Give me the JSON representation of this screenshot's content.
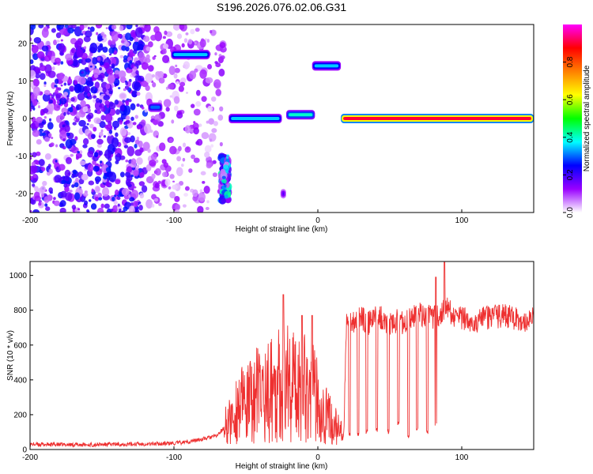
{
  "figure": {
    "title": "S196.2026.076.02.06.G31"
  },
  "chart_data": [
    {
      "type": "heatmap",
      "xlabel": "Height of straight line (km)",
      "ylabel": "Frequency (Hz)",
      "xlim": [
        -200,
        150
      ],
      "ylim": [
        -25,
        25
      ],
      "xticks": [
        "-200",
        "-100",
        "0",
        "100"
      ],
      "yticks": [
        "-20",
        "-10",
        "0",
        "10",
        "20"
      ],
      "colorbar": {
        "label": "Normalized spectral amplitude",
        "range": [
          0,
          1
        ],
        "ticks": [
          "0.0",
          "0.2",
          "0.4",
          "0.6",
          "0.8"
        ],
        "colormap": "rainbow",
        "colors": [
          "#ffffff",
          "#9900ff",
          "#0000ff",
          "#00ffff",
          "#00ff00",
          "#ffff00",
          "#ff8000",
          "#ff0000",
          "#ff00ff"
        ]
      },
      "features": [
        {
          "x_range": [
            -200,
            -120
          ],
          "freq_range": [
            -25,
            25
          ],
          "amplitude": 0.15,
          "pattern": "scattered noise"
        },
        {
          "x_range": [
            -120,
            -65
          ],
          "freq_range": [
            -25,
            25
          ],
          "amplitude": 0.08,
          "pattern": "sparse noise"
        },
        {
          "x_range": [
            -102,
            -75
          ],
          "freq": 17,
          "amplitude": 0.35
        },
        {
          "x_range": [
            -118,
            -108
          ],
          "freq": 3,
          "amplitude": 0.3
        },
        {
          "x_range": [
            -67,
            -62
          ],
          "freq_range": [
            -22,
            -10
          ],
          "amplitude": 0.25
        },
        {
          "x_range": [
            -62,
            -25
          ],
          "freq": 0,
          "amplitude": 0.35
        },
        {
          "x_range": [
            -22,
            -2
          ],
          "freq": 1,
          "amplitude": 0.4
        },
        {
          "x_range": [
            -4,
            16
          ],
          "freq": 14,
          "amplitude": 0.35
        },
        {
          "x_range": [
            -26,
            -22
          ],
          "freq": -20,
          "amplitude": 0.2
        },
        {
          "x_range": [
            16,
            150
          ],
          "freq": 0,
          "amplitude": 0.9
        }
      ]
    },
    {
      "type": "line",
      "xlabel": "Height of straight line (km)",
      "ylabel": "SNR (10 * v/v)",
      "xlim": [
        -200,
        150
      ],
      "ylim": [
        0,
        1080
      ],
      "xticks": [
        "-200",
        "-100",
        "0",
        "100"
      ],
      "yticks": [
        "0",
        "200",
        "400",
        "600",
        "800",
        "1000"
      ],
      "series": [
        {
          "color": "#ee3030",
          "x": [
            -200,
            -180,
            -160,
            -140,
            -120,
            -100,
            -90,
            -80,
            -70,
            -60,
            -55,
            -50,
            -45,
            -40,
            -35,
            -30,
            -25,
            -20,
            -15,
            -10,
            -5,
            0,
            5,
            10,
            15,
            18,
            20,
            25,
            30,
            35,
            40,
            45,
            50,
            55,
            60,
            65,
            70,
            75,
            80,
            85,
            90,
            95,
            100,
            110,
            120,
            130,
            140,
            150
          ],
          "y": [
            30,
            28,
            27,
            30,
            32,
            35,
            45,
            60,
            80,
            170,
            260,
            240,
            300,
            330,
            320,
            380,
            360,
            420,
            340,
            400,
            330,
            300,
            210,
            150,
            110,
            60,
            730,
            740,
            760,
            720,
            770,
            750,
            720,
            740,
            730,
            760,
            780,
            770,
            750,
            780,
            810,
            760,
            750,
            740,
            760,
            770,
            740,
            750
          ],
          "dips": [
            [
              22,
              80
            ],
            [
              28,
              70
            ],
            [
              34,
              90
            ],
            [
              41,
              100
            ],
            [
              49,
              90
            ],
            [
              56,
              130
            ],
            [
              63,
              60
            ],
            [
              69,
              110
            ],
            [
              76,
              80
            ],
            [
              82,
              120
            ]
          ],
          "spikes": [
            [
              -24,
              890
            ],
            [
              -11,
              770
            ],
            [
              -4,
              770
            ],
            [
              88,
              1075
            ],
            [
              82,
              990
            ]
          ]
        }
      ]
    }
  ]
}
